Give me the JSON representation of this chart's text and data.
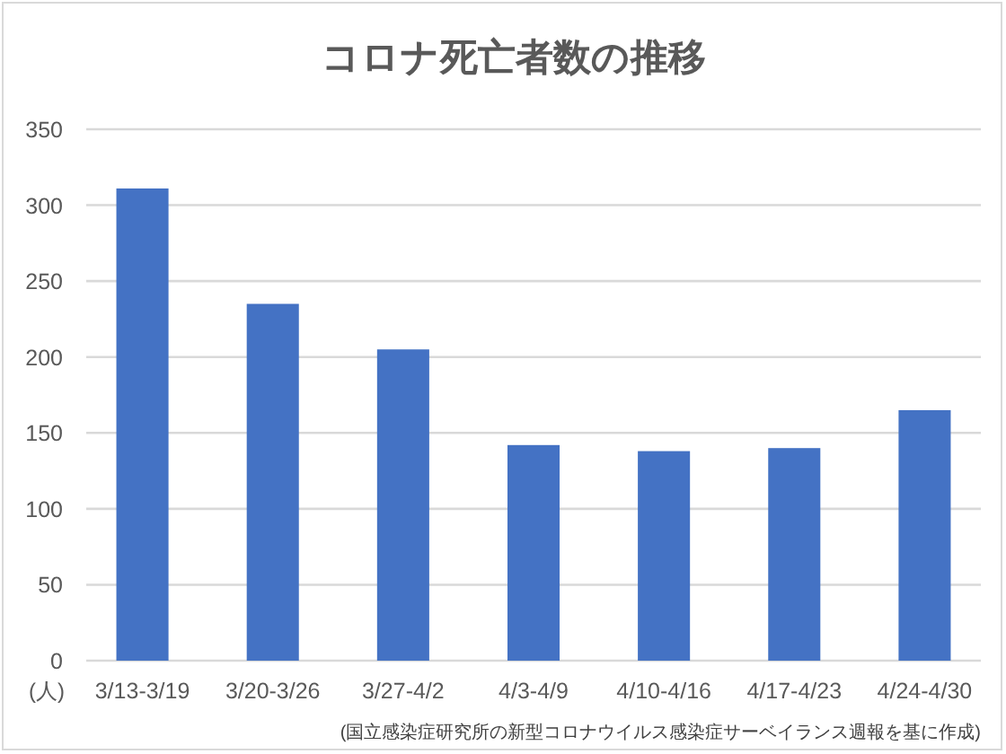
{
  "chart_data": {
    "type": "bar",
    "title": "コロナ死亡者数の推移",
    "ylabel": "(人)",
    "categories": [
      "3/13-3/19",
      "3/20-3/26",
      "3/27-4/2",
      "4/3-4/9",
      "4/10-4/16",
      "4/17-4/23",
      "4/24-4/30"
    ],
    "values": [
      311,
      235,
      205,
      142,
      138,
      140,
      165
    ],
    "color": "#4472c4",
    "ylim": [
      0,
      350
    ],
    "yticks": [
      0,
      50,
      100,
      150,
      200,
      250,
      300,
      350
    ],
    "grid": "y",
    "annotations": [
      "(国立感染症研究所の新型コロナウイルス感染症サーベイランス週報を基に作成)"
    ]
  }
}
